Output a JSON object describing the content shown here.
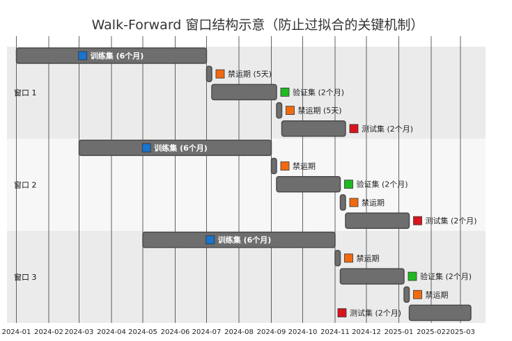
{
  "chart_data": {
    "type": "gantt",
    "title": "Walk-Forward 窗口结构示意（防止过拟合的关键机制）",
    "x_ticks": [
      "2024-01",
      "2024-02",
      "2024-03",
      "2024-04",
      "2024-05",
      "2024-06",
      "2024-07",
      "2024-08",
      "2024-09",
      "2024-10",
      "2024-11",
      "2024-12",
      "2025-01",
      "2025-02",
      "2025-03"
    ],
    "xlim": [
      "2023-12-23",
      "2025-03-25"
    ],
    "grid": "vertical",
    "colors": {
      "bar": "#6e6e6e",
      "train": "#1874cd",
      "embargo": "#f26a10",
      "validation": "#1fba1f",
      "test": "#d8141e",
      "band_odd": "#ebebeb",
      "band_even": "#f7f7f7"
    },
    "windows": [
      {
        "label": "窗口 1",
        "segments": [
          {
            "kind": "train",
            "start": "2024-01-01",
            "end": "2024-07-01",
            "label": "训练集 (6个月)",
            "label_pos": "inside"
          },
          {
            "kind": "embargo",
            "start": "2024-07-01",
            "end": "2024-07-06",
            "label": "禁运期 (5天)",
            "label_pos": "right"
          },
          {
            "kind": "validation",
            "start": "2024-07-06",
            "end": "2024-09-06",
            "label": "验证集 (2个月)",
            "label_pos": "right"
          },
          {
            "kind": "embargo",
            "start": "2024-09-06",
            "end": "2024-09-11",
            "label": "禁运期 (5天)",
            "label_pos": "right"
          },
          {
            "kind": "test",
            "start": "2024-09-11",
            "end": "2024-11-11",
            "label": "测试集 (2个月)",
            "label_pos": "right"
          }
        ]
      },
      {
        "label": "窗口 2",
        "segments": [
          {
            "kind": "train",
            "start": "2024-03-01",
            "end": "2024-09-01",
            "label": "训练集 (6个月)",
            "label_pos": "inside"
          },
          {
            "kind": "embargo",
            "start": "2024-09-01",
            "end": "2024-09-06",
            "label": "禁运期",
            "label_pos": "right"
          },
          {
            "kind": "validation",
            "start": "2024-09-06",
            "end": "2024-11-06",
            "label": "验证集 (2个月)",
            "label_pos": "right"
          },
          {
            "kind": "embargo",
            "start": "2024-11-06",
            "end": "2024-11-11",
            "label": "禁运期",
            "label_pos": "right"
          },
          {
            "kind": "test",
            "start": "2024-11-11",
            "end": "2025-01-11",
            "label": "测试集 (2个月)",
            "label_pos": "right"
          }
        ]
      },
      {
        "label": "窗口 3",
        "segments": [
          {
            "kind": "train",
            "start": "2024-05-01",
            "end": "2024-11-01",
            "label": "训练集 (6个月)",
            "label_pos": "inside"
          },
          {
            "kind": "embargo",
            "start": "2024-11-01",
            "end": "2024-11-06",
            "label": "禁运期",
            "label_pos": "right"
          },
          {
            "kind": "validation",
            "start": "2024-11-06",
            "end": "2025-01-06",
            "label": "验证集 (2个月)",
            "label_pos": "right"
          },
          {
            "kind": "embargo",
            "start": "2025-01-06",
            "end": "2025-01-11",
            "label": "禁运期",
            "label_pos": "right"
          },
          {
            "kind": "test",
            "start": "2025-01-11",
            "end": "2025-03-11",
            "label": "测试集 (2个月)",
            "label_pos": "left"
          }
        ]
      }
    ]
  }
}
